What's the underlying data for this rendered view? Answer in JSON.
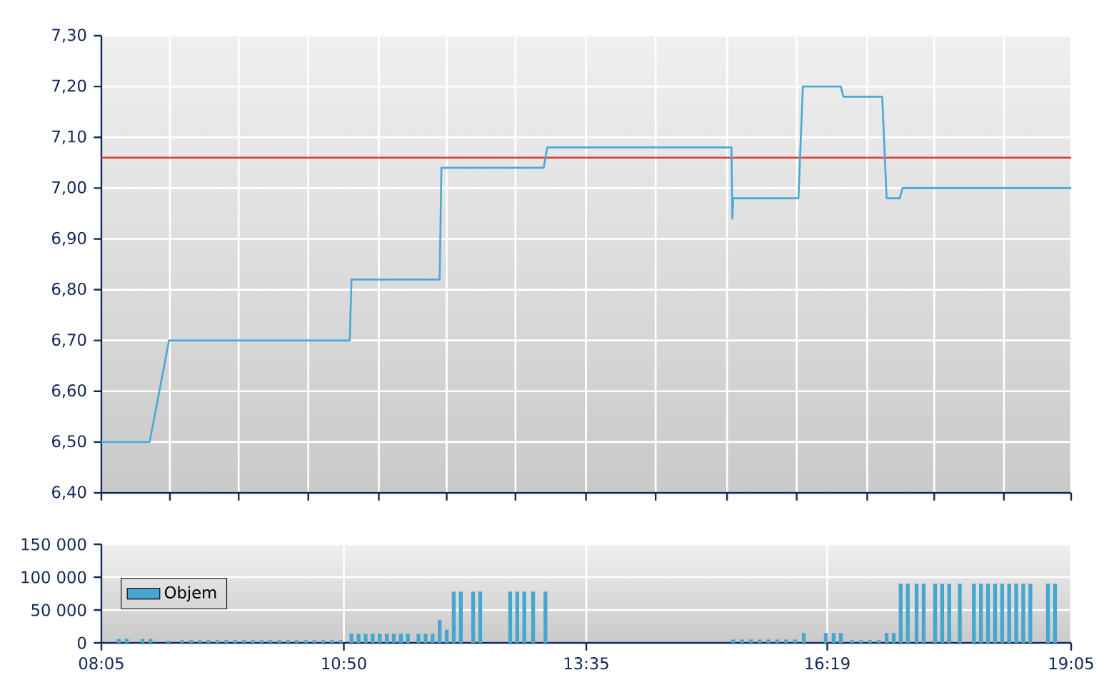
{
  "chart_data": [
    {
      "type": "line",
      "xlim": [
        8.0833,
        19.0833
      ],
      "ylim": [
        6.4,
        7.3
      ],
      "xticks": [
        {
          "value": 8.0833,
          "label": null
        },
        {
          "value": 8.86,
          "label": null
        },
        {
          "value": 9.64,
          "label": null
        },
        {
          "value": 10.43,
          "label": null
        },
        {
          "value": 11.23,
          "label": null
        },
        {
          "value": 12.0,
          "label": null
        },
        {
          "value": 12.78,
          "label": null
        },
        {
          "value": 13.58,
          "label": null
        },
        {
          "value": 14.37,
          "label": null
        },
        {
          "value": 15.18,
          "label": null
        },
        {
          "value": 15.97,
          "label": null
        },
        {
          "value": 16.77,
          "label": null
        },
        {
          "value": 17.53,
          "label": null
        },
        {
          "value": 18.32,
          "label": null
        },
        {
          "value": 19.0833,
          "label": null
        }
      ],
      "yticks": [
        {
          "value": 6.4,
          "label": "6,40"
        },
        {
          "value": 6.5,
          "label": "6,50"
        },
        {
          "value": 6.6,
          "label": "6,60"
        },
        {
          "value": 6.7,
          "label": "6,70"
        },
        {
          "value": 6.8,
          "label": "6,80"
        },
        {
          "value": 6.9,
          "label": "6,90"
        },
        {
          "value": 7.0,
          "label": "7,00"
        },
        {
          "value": 7.1,
          "label": "7,10"
        },
        {
          "value": 7.2,
          "label": "7,20"
        },
        {
          "value": 7.3,
          "label": "7,30"
        }
      ],
      "series": [
        {
          "color": "#4aaad4",
          "x": [
            8.0833,
            8.63,
            8.85,
            10.9,
            10.92,
            11.92,
            11.94,
            13.1,
            13.14,
            15.23,
            15.24,
            15.25,
            15.26,
            15.99,
            16.04,
            16.47,
            16.5,
            16.94,
            16.99,
            17.14,
            17.17,
            19.0833
          ],
          "values": [
            6.5,
            6.5,
            6.7,
            6.7,
            6.82,
            6.82,
            7.04,
            7.04,
            7.08,
            7.08,
            6.94,
            6.98,
            6.98,
            6.98,
            7.2,
            7.2,
            7.18,
            7.18,
            6.98,
            6.98,
            7.0,
            7.0
          ]
        }
      ],
      "ref_lines": [
        {
          "axis": "y",
          "value": 7.06,
          "color": "#e03c3c"
        }
      ],
      "grid": true,
      "tick_labels": "y"
    },
    {
      "type": "bar",
      "xlim": [
        8.0833,
        19.0833
      ],
      "ylim": [
        0,
        150000
      ],
      "xticks": [
        {
          "value": 8.0833,
          "label": "08:05"
        },
        {
          "value": 10.8333,
          "label": "10:50"
        },
        {
          "value": 13.5833,
          "label": "13:35"
        },
        {
          "value": 16.3167,
          "label": "16:19"
        },
        {
          "value": 19.0833,
          "label": "19:05"
        }
      ],
      "yticks": [
        {
          "value": 0,
          "label": "0"
        },
        {
          "value": 50000,
          "label": "50 000"
        },
        {
          "value": 100000,
          "label": "100 000"
        },
        {
          "value": 150000,
          "label": "150 000"
        }
      ],
      "series": [
        {
          "name": "Objem",
          "color": "#46a6cf",
          "x": [
            8.28,
            8.37,
            8.55,
            8.64,
            8.84,
            9.0,
            9.1,
            9.2,
            9.3,
            9.4,
            9.5,
            9.6,
            9.7,
            9.8,
            9.9,
            10.0,
            10.1,
            10.2,
            10.3,
            10.4,
            10.5,
            10.6,
            10.7,
            10.8,
            10.92,
            11.0,
            11.08,
            11.16,
            11.24,
            11.32,
            11.4,
            11.48,
            11.56,
            11.68,
            11.76,
            11.84,
            11.92,
            12.0,
            12.08,
            12.16,
            12.3,
            12.38,
            12.72,
            12.8,
            12.88,
            12.98,
            13.12,
            15.25,
            15.35,
            15.45,
            15.55,
            15.65,
            15.75,
            15.85,
            15.95,
            16.05,
            16.3,
            16.39,
            16.47,
            16.6,
            16.7,
            16.8,
            16.9,
            16.99,
            17.07,
            17.15,
            17.23,
            17.33,
            17.41,
            17.54,
            17.62,
            17.7,
            17.82,
            17.98,
            18.06,
            18.14,
            18.22,
            18.3,
            18.38,
            18.46,
            18.54,
            18.62,
            18.82,
            18.9
          ],
          "values": [
            6000,
            6000,
            6000,
            6000,
            3000,
            4000,
            4000,
            4000,
            4000,
            4000,
            4000,
            4000,
            4000,
            4000,
            4000,
            4000,
            4000,
            4000,
            4000,
            4000,
            4000,
            4000,
            4000,
            4000,
            14000,
            14000,
            14000,
            14000,
            14000,
            14000,
            14000,
            14000,
            14000,
            14000,
            14000,
            14000,
            35000,
            20000,
            78000,
            78000,
            78000,
            78000,
            78000,
            78000,
            78000,
            78000,
            78000,
            5000,
            5000,
            5000,
            5000,
            5000,
            5000,
            5000,
            5000,
            15000,
            15000,
            15000,
            15000,
            4000,
            4000,
            4000,
            4000,
            15000,
            15000,
            90000,
            90000,
            90000,
            90000,
            90000,
            90000,
            90000,
            90000,
            90000,
            90000,
            90000,
            90000,
            90000,
            90000,
            90000,
            90000,
            90000,
            90000,
            90000
          ]
        }
      ],
      "grid": true,
      "legend": "left"
    }
  ]
}
